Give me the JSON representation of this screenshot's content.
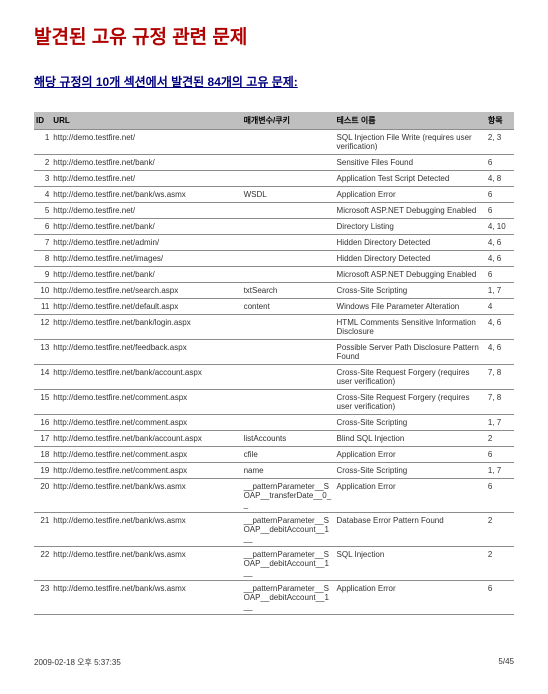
{
  "title": "발견된 고유 규정 관련 문제",
  "subtitle": "해당 규정의 10개 섹션에서 발견된 84개의 고유 문제:",
  "cols": {
    "id": "ID",
    "url": "URL",
    "param": "매개변수/쿠키",
    "test": "테스트 이름",
    "item": "항목"
  },
  "rows": [
    {
      "id": "1",
      "url": "http://demo.testfire.net/",
      "param": "",
      "test": "SQL Injection File Write (requires user verification)",
      "item": "2, 3"
    },
    {
      "id": "2",
      "url": "http://demo.testfire.net/bank/",
      "param": "",
      "test": "Sensitive Files Found",
      "item": "6"
    },
    {
      "id": "3",
      "url": "http://demo.testfire.net/",
      "param": "",
      "test": "Application Test Script Detected",
      "item": "4, 8"
    },
    {
      "id": "4",
      "url": "http://demo.testfire.net/bank/ws.asmx",
      "param": "WSDL",
      "test": "Application Error",
      "item": "6"
    },
    {
      "id": "5",
      "url": "http://demo.testfire.net/",
      "param": "",
      "test": "Microsoft ASP.NET Debugging Enabled",
      "item": "6"
    },
    {
      "id": "6",
      "url": "http://demo.testfire.net/bank/",
      "param": "",
      "test": "Directory Listing",
      "item": "4, 10"
    },
    {
      "id": "7",
      "url": "http://demo.testfire.net/admin/",
      "param": "",
      "test": "Hidden Directory Detected",
      "item": "4, 6"
    },
    {
      "id": "8",
      "url": "http://demo.testfire.net/images/",
      "param": "",
      "test": "Hidden Directory Detected",
      "item": "4, 6"
    },
    {
      "id": "9",
      "url": "http://demo.testfire.net/bank/",
      "param": "",
      "test": "Microsoft ASP.NET Debugging Enabled",
      "item": "6"
    },
    {
      "id": "10",
      "url": "http://demo.testfire.net/search.aspx",
      "param": "txtSearch",
      "test": "Cross-Site Scripting",
      "item": "1, 7"
    },
    {
      "id": "11",
      "url": "http://demo.testfire.net/default.aspx",
      "param": "content",
      "test": "Windows File Parameter Alteration",
      "item": "4"
    },
    {
      "id": "12",
      "url": "http://demo.testfire.net/bank/login.aspx",
      "param": "",
      "test": "HTML Comments Sensitive Information Disclosure",
      "item": "4, 6"
    },
    {
      "id": "13",
      "url": "http://demo.testfire.net/feedback.aspx",
      "param": "",
      "test": "Possible Server Path Disclosure Pattern Found",
      "item": "4, 6"
    },
    {
      "id": "14",
      "url": "http://demo.testfire.net/bank/account.aspx",
      "param": "",
      "test": "Cross-Site Request Forgery (requires user verification)",
      "item": "7, 8"
    },
    {
      "id": "15",
      "url": "http://demo.testfire.net/comment.aspx",
      "param": "",
      "test": "Cross-Site Request Forgery (requires user verification)",
      "item": "7, 8"
    },
    {
      "id": "16",
      "url": "http://demo.testfire.net/comment.aspx",
      "param": "",
      "test": "Cross-Site Scripting",
      "item": "1, 7"
    },
    {
      "id": "17",
      "url": "http://demo.testfire.net/bank/account.aspx",
      "param": "listAccounts",
      "test": "Blind SQL Injection",
      "item": "2"
    },
    {
      "id": "18",
      "url": "http://demo.testfire.net/comment.aspx",
      "param": "cfile",
      "test": "Application Error",
      "item": "6"
    },
    {
      "id": "19",
      "url": "http://demo.testfire.net/comment.aspx",
      "param": "name",
      "test": "Cross-Site Scripting",
      "item": "1, 7"
    },
    {
      "id": "20",
      "url": "http://demo.testfire.net/bank/ws.asmx",
      "param": "__patternParameter__SOAP__transferDate__0__",
      "test": "Application Error",
      "item": "6"
    },
    {
      "id": "21",
      "url": "http://demo.testfire.net/bank/ws.asmx",
      "param": "__patternParameter__SOAP__debitAccount__1__",
      "test": "Database Error Pattern Found",
      "item": "2"
    },
    {
      "id": "22",
      "url": "http://demo.testfire.net/bank/ws.asmx",
      "param": "__patternParameter__SOAP__debitAccount__1__",
      "test": "SQL Injection",
      "item": "2"
    },
    {
      "id": "23",
      "url": "http://demo.testfire.net/bank/ws.asmx",
      "param": "__patternParameter__SOAP__debitAccount__1__",
      "test": "Application Error",
      "item": "6"
    }
  ],
  "footer": {
    "date": "2009-02-18 오후 5:37:35",
    "page": "5/45"
  }
}
